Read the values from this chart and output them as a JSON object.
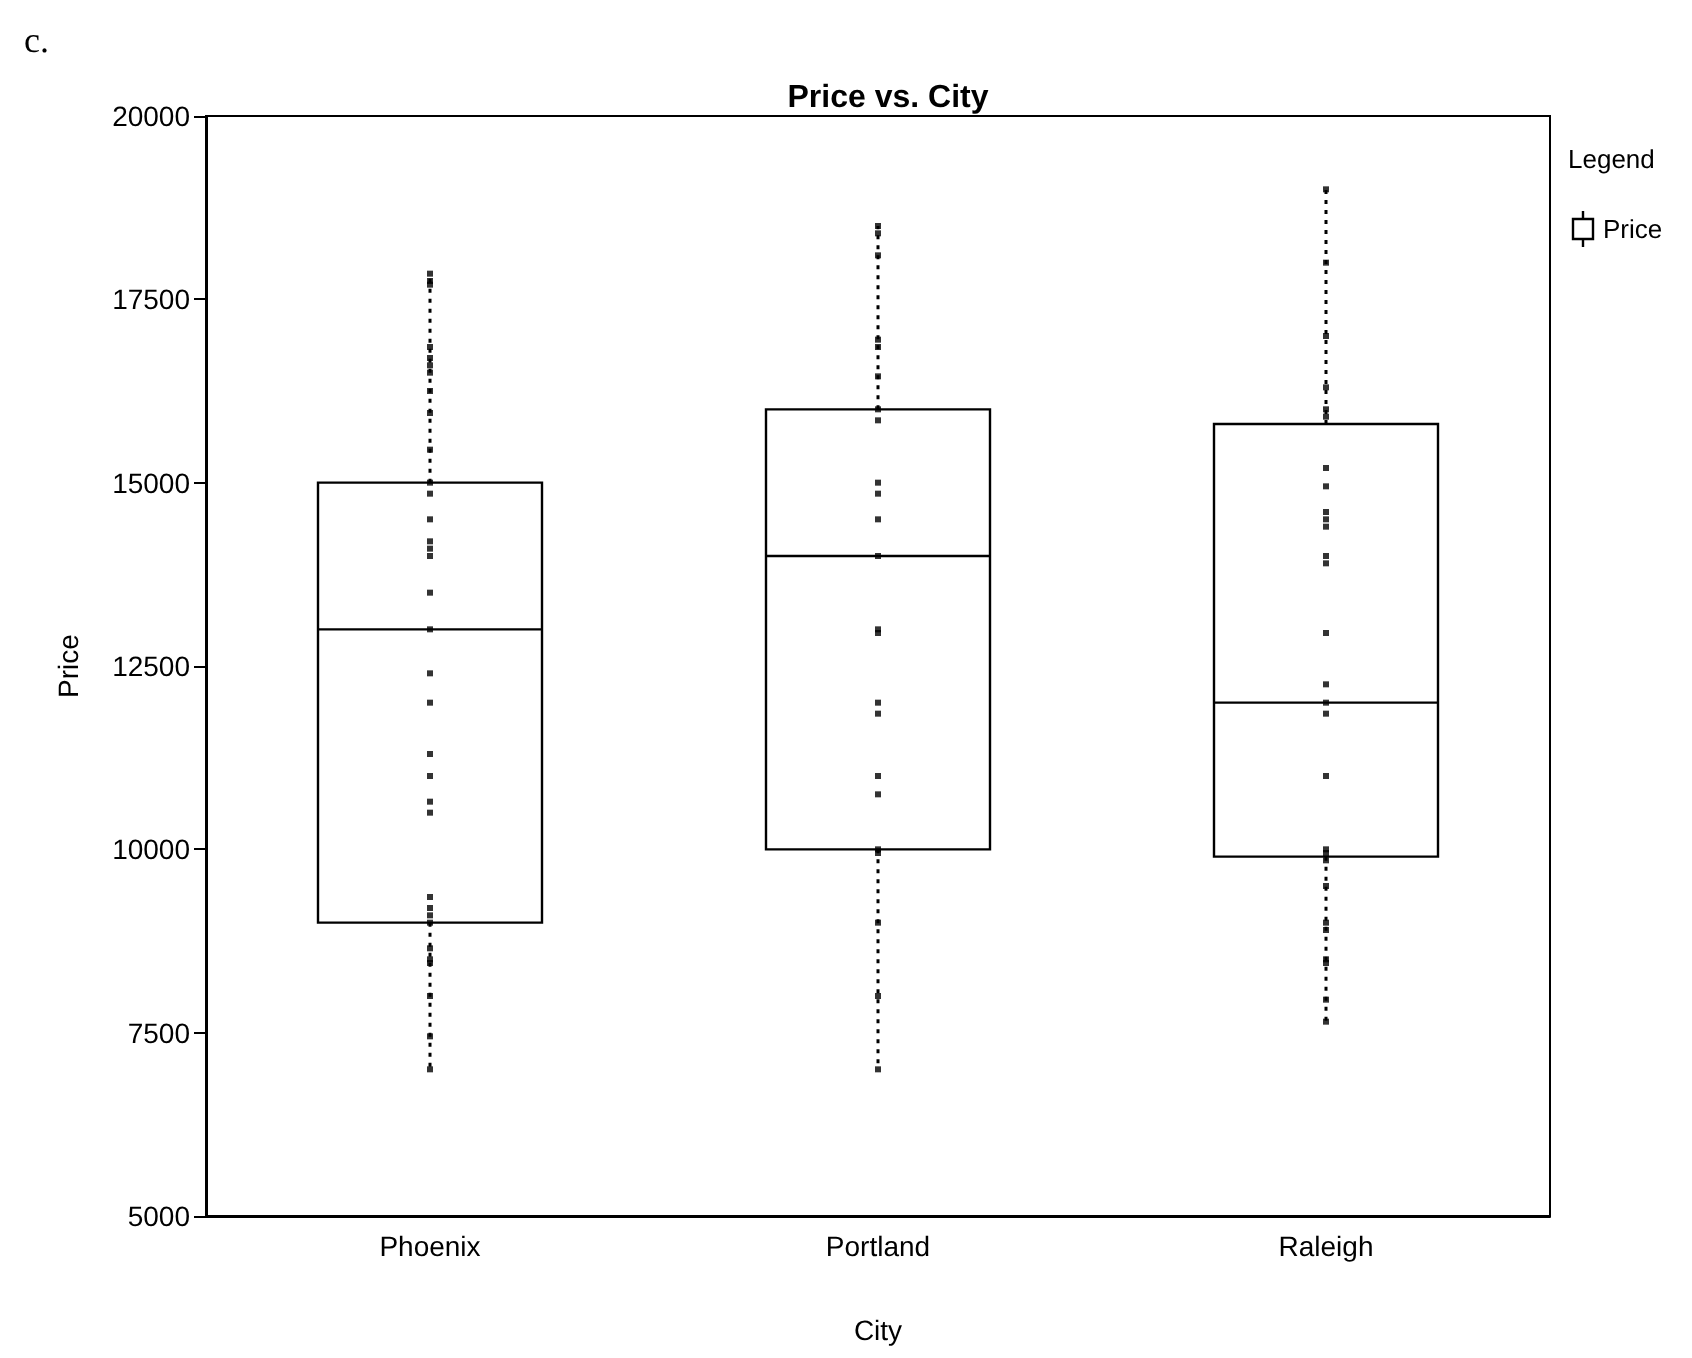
{
  "chart_data": {
    "type": "box",
    "title": "Price vs. City",
    "xlabel": "City",
    "ylabel": "Price",
    "legend_title": "Legend",
    "annotations": [
      "c."
    ],
    "categories": [
      "Phoenix",
      "Portland",
      "Raleigh"
    ],
    "ylim": [
      5000,
      20000
    ],
    "yticks": [
      5000,
      7500,
      10000,
      12500,
      15000,
      17500,
      20000
    ],
    "grid": false,
    "legend": "top right",
    "marker": "square",
    "series": [
      {
        "name": "Price",
        "color": "#000000",
        "boxes": [
          {
            "low": 7000,
            "q1": 9000,
            "median": 13000,
            "q3": 15000,
            "high": 17850
          },
          {
            "low": 7000,
            "q1": 10000,
            "median": 14000,
            "q3": 16000,
            "high": 18500
          },
          {
            "low": 7650,
            "q1": 9900,
            "median": 12000,
            "q3": 15800,
            "high": 19000
          }
        ]
      },
      {
        "type": "scatter",
        "color": "#000000",
        "x": [
          "Phoenix",
          "Phoenix",
          "Phoenix",
          "Phoenix",
          "Phoenix",
          "Phoenix",
          "Phoenix",
          "Phoenix",
          "Phoenix",
          "Phoenix",
          "Phoenix",
          "Phoenix",
          "Phoenix",
          "Phoenix",
          "Phoenix",
          "Phoenix",
          "Phoenix",
          "Phoenix",
          "Phoenix",
          "Phoenix",
          "Phoenix",
          "Phoenix",
          "Phoenix",
          "Phoenix",
          "Phoenix",
          "Phoenix",
          "Phoenix",
          "Phoenix",
          "Phoenix",
          "Phoenix",
          "Phoenix",
          "Phoenix",
          "Phoenix",
          "Phoenix",
          "Portland",
          "Portland",
          "Portland",
          "Portland",
          "Portland",
          "Portland",
          "Portland",
          "Portland",
          "Portland",
          "Portland",
          "Portland",
          "Portland",
          "Portland",
          "Portland",
          "Portland",
          "Portland",
          "Portland",
          "Portland",
          "Portland",
          "Portland",
          "Portland",
          "Portland",
          "Portland",
          "Raleigh",
          "Raleigh",
          "Raleigh",
          "Raleigh",
          "Raleigh",
          "Raleigh",
          "Raleigh",
          "Raleigh",
          "Raleigh",
          "Raleigh",
          "Raleigh",
          "Raleigh",
          "Raleigh",
          "Raleigh",
          "Raleigh",
          "Raleigh",
          "Raleigh",
          "Raleigh",
          "Raleigh",
          "Raleigh",
          "Raleigh",
          "Raleigh",
          "Raleigh",
          "Raleigh",
          "Raleigh",
          "Raleigh",
          "Raleigh",
          "Raleigh"
        ],
        "values": [
          17850,
          17750,
          17700,
          16850,
          16700,
          16600,
          16500,
          16250,
          15950,
          15450,
          15000,
          14850,
          14500,
          14200,
          14100,
          14000,
          13500,
          13000,
          12400,
          12000,
          11300,
          11000,
          10650,
          10500,
          9350,
          9200,
          9100,
          9000,
          8650,
          8500,
          8450,
          8000,
          7450,
          7000,
          18500,
          18400,
          18100,
          16950,
          16850,
          16450,
          16000,
          15850,
          15000,
          14850,
          14500,
          14000,
          13000,
          12950,
          12000,
          11850,
          11000,
          10750,
          10000,
          9950,
          9000,
          8000,
          7000,
          19000,
          18000,
          17000,
          16300,
          16000,
          15900,
          15200,
          14950,
          14600,
          14500,
          14400,
          14000,
          13900,
          12950,
          12250,
          12000,
          11850,
          11000,
          10000,
          9950,
          9850,
          9500,
          9000,
          8900,
          8500,
          8450,
          7950,
          7650
        ]
      }
    ]
  }
}
